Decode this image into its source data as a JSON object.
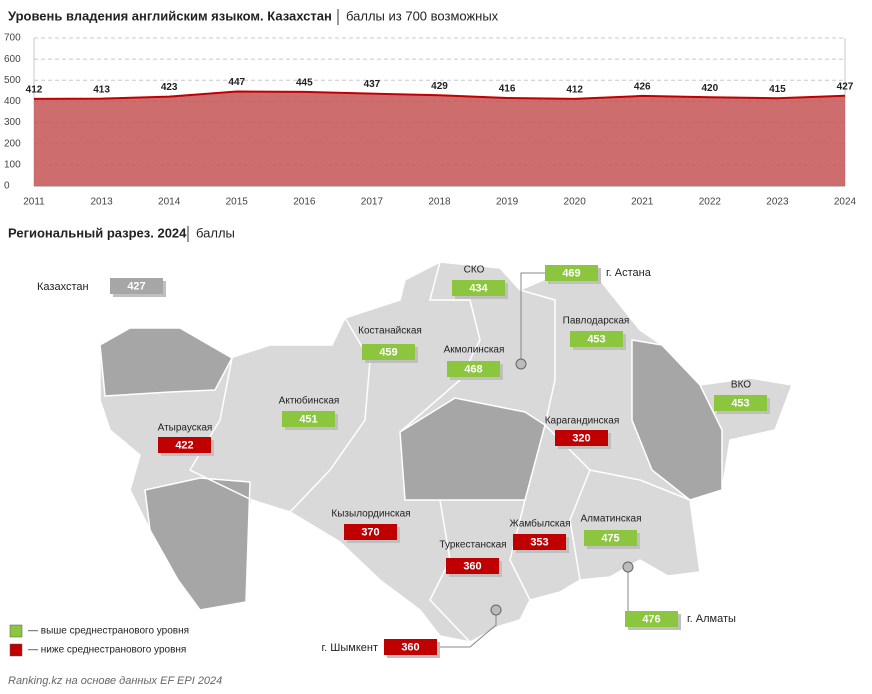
{
  "chart_data": {
    "type": "area",
    "title": "Уровень владения английским языком. Казахстан",
    "subtitle": "баллы из 700 возможных",
    "categories": [
      "2011",
      "2013",
      "2014",
      "2015",
      "2016",
      "2017",
      "2018",
      "2019",
      "2020",
      "2021",
      "2022",
      "2023",
      "2024"
    ],
    "values": [
      412,
      413,
      423,
      447,
      445,
      437,
      429,
      416,
      412,
      426,
      420,
      415,
      427
    ],
    "color": "#c00000",
    "fill": "#c65353",
    "ylim": [
      0,
      700
    ],
    "yticks": [
      0,
      100,
      200,
      300,
      400,
      500,
      600,
      700
    ],
    "grid": true
  },
  "regional": {
    "title": "Региональный разрез. 2024",
    "subtitle": "баллы",
    "national": {
      "name": "Казахстан",
      "value": 427,
      "color": "#a6a6a6"
    },
    "regions": [
      {
        "name": "СКО",
        "value": 434,
        "color": "#8cc63f"
      },
      {
        "name": "г. Астана",
        "value": 469,
        "color": "#8cc63f"
      },
      {
        "name": "Павлодарская",
        "value": 453,
        "color": "#8cc63f"
      },
      {
        "name": "Костанайская",
        "value": 459,
        "color": "#8cc63f"
      },
      {
        "name": "Акмолинская",
        "value": 468,
        "color": "#8cc63f"
      },
      {
        "name": "ВКО",
        "value": 453,
        "color": "#8cc63f"
      },
      {
        "name": "Актюбинская",
        "value": 451,
        "color": "#8cc63f"
      },
      {
        "name": "Атырауская",
        "value": 422,
        "color": "#c00000"
      },
      {
        "name": "Карагандинская",
        "value": 320,
        "color": "#c00000"
      },
      {
        "name": "Кызылординская",
        "value": 370,
        "color": "#c00000"
      },
      {
        "name": "Жамбылская",
        "value": 353,
        "color": "#c00000"
      },
      {
        "name": "Алматинская",
        "value": 475,
        "color": "#8cc63f"
      },
      {
        "name": "Туркестанская",
        "value": 360,
        "color": "#c00000"
      },
      {
        "name": "г. Алматы",
        "value": 476,
        "color": "#8cc63f"
      },
      {
        "name": "г. Шымкент",
        "value": 360,
        "color": "#c00000"
      }
    ],
    "legend": [
      {
        "label": "— выше среднестранового уровня",
        "color": "#8cc63f"
      },
      {
        "label": "— ниже среднестранового уровня",
        "color": "#c00000"
      }
    ]
  },
  "source": "Ranking.kz на основе данных EF EPI 2024"
}
